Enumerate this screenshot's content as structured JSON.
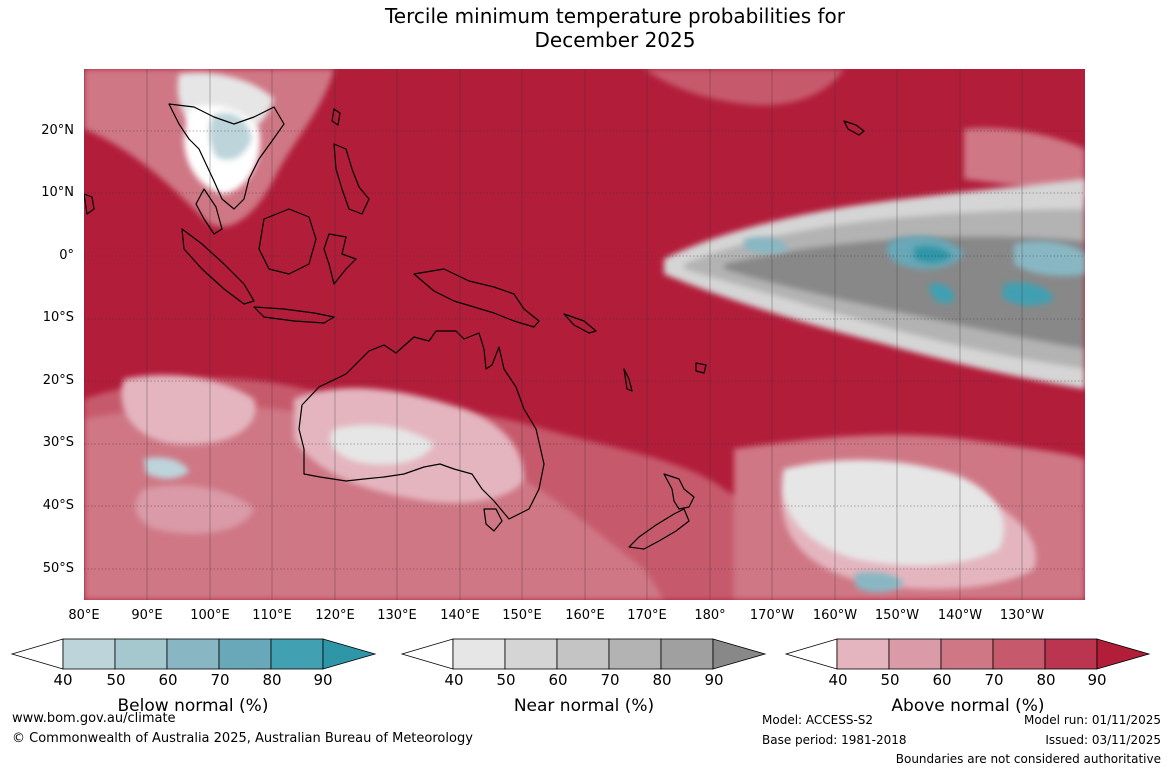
{
  "title": {
    "line1": "Tercile minimum temperature probabilities for",
    "line2": "December 2025"
  },
  "map": {
    "latitude_labels": [
      "20°N",
      "10°N",
      "0°",
      "10°S",
      "20°S",
      "30°S",
      "40°S",
      "50°S"
    ],
    "longitude_labels": [
      "80°E",
      "90°E",
      "100°E",
      "110°E",
      "120°E",
      "130°E",
      "140°E",
      "150°E",
      "160°E",
      "170°E",
      "180°",
      "170°W",
      "160°W",
      "150°W",
      "140°W",
      "130°W"
    ],
    "background_color": "#b21d3a",
    "coastline_color": "#000000",
    "regions": [
      {
        "name": "Australia",
        "dominant_category": "Above normal"
      },
      {
        "name": "New Guinea",
        "dominant_category": "Above normal"
      },
      {
        "name": "Indochina",
        "dominant_category": "Below normal"
      },
      {
        "name": "Central equatorial Pacific",
        "dominant_category": "Near normal"
      },
      {
        "name": "Tasman Sea",
        "dominant_category": "Above normal"
      }
    ]
  },
  "legends": [
    {
      "title": "Below normal (%)",
      "ticks": [
        "40",
        "50",
        "60",
        "70",
        "80",
        "90"
      ],
      "colors": [
        "#ffffff",
        "#bdd4da",
        "#a5c7ce",
        "#88b7c3",
        "#68a8b8",
        "#41a0b2",
        "#2f96a8"
      ]
    },
    {
      "title": "Near normal (%)",
      "ticks": [
        "40",
        "50",
        "60",
        "70",
        "80",
        "90"
      ],
      "colors": [
        "#ffffff",
        "#e6e6e6",
        "#d5d5d5",
        "#c4c4c4",
        "#b3b3b3",
        "#a0a0a0",
        "#888888"
      ]
    },
    {
      "title": "Above normal (%)",
      "ticks": [
        "40",
        "50",
        "60",
        "70",
        "80",
        "90"
      ],
      "colors": [
        "#ffffff",
        "#e4b5bf",
        "#da9aa7",
        "#cf7785",
        "#c65a6c",
        "#bb3450",
        "#b21d3a"
      ]
    }
  ],
  "footer": {
    "website": "www.bom.gov.au/climate",
    "copyright": "© Commonwealth of Australia 2025, Australian Bureau of Meteorology",
    "model": "Model: ACCESS-S2",
    "base_period": "Base period: 1981-2018",
    "model_run": "Model run: 01/11/2025",
    "issued": "Issued: 03/11/2025",
    "disclaimer": "Boundaries are not considered authoritative"
  }
}
